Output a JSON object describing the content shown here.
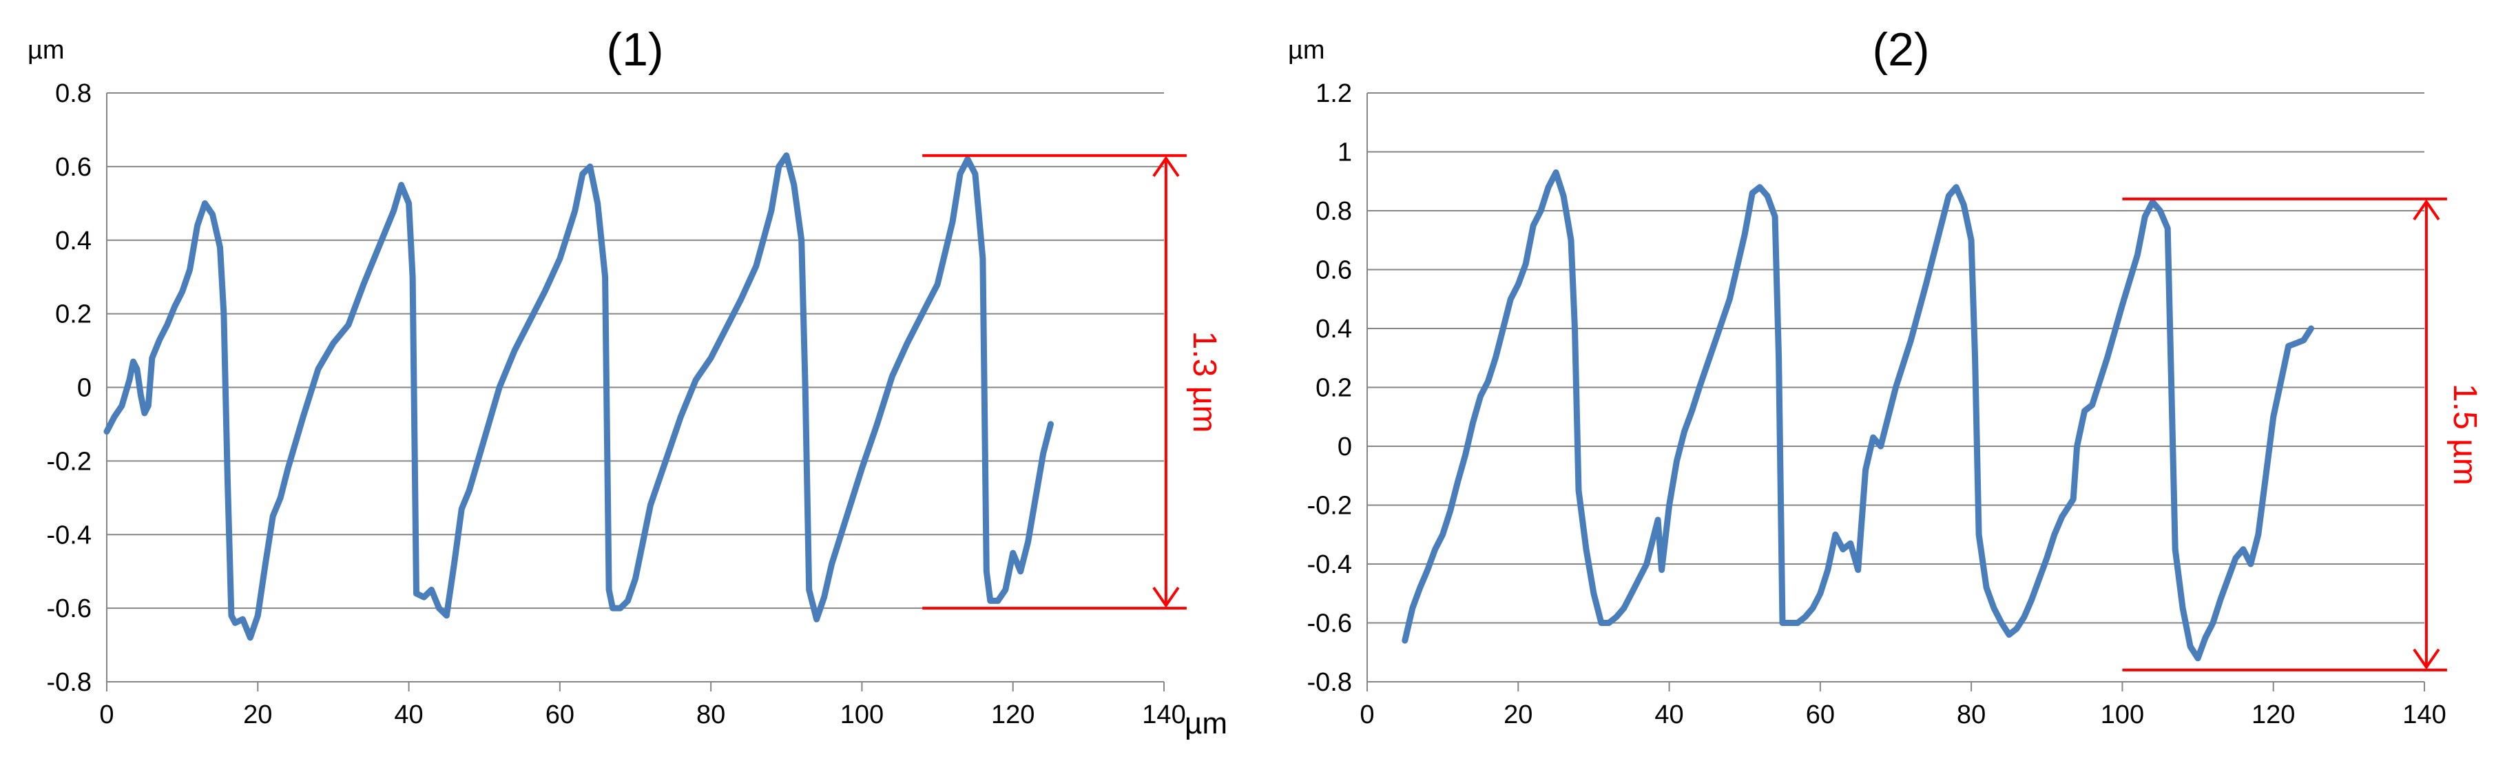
{
  "chart_data": [
    {
      "type": "line",
      "title": "(1)",
      "ylabel": "µm",
      "xlabel": "µm",
      "xlim": [
        0,
        140
      ],
      "ylim": [
        -0.8,
        0.8
      ],
      "xticks": [
        "0",
        "20",
        "40",
        "60",
        "80",
        "100",
        "120",
        "140"
      ],
      "yticks": [
        "-0.8",
        "-0.6",
        "-0.4",
        "-0.2",
        "0",
        "0.2",
        "0.4",
        "0.6",
        "0.8"
      ],
      "grid": "horizontal",
      "line_color": "#4a7ebb",
      "annotation_color": "#ff0000",
      "series": [
        {
          "x": [
            0,
            1,
            2,
            3,
            3.5,
            4,
            4.5,
            5,
            5.5,
            6,
            7,
            8,
            9,
            10,
            11,
            12,
            13,
            14,
            15,
            15.5,
            16,
            16.5,
            17,
            18,
            19,
            20,
            21,
            22,
            23,
            24,
            26,
            28,
            30,
            32,
            34,
            36,
            38,
            39,
            40,
            40.5,
            41,
            42,
            43,
            44,
            45,
            46,
            47,
            48,
            50,
            52,
            54,
            56,
            58,
            60,
            62,
            63,
            64,
            65,
            66,
            66.5,
            67,
            68,
            69,
            70,
            71,
            72,
            74,
            76,
            78,
            80,
            82,
            84,
            86,
            88,
            89,
            90,
            91,
            92,
            92.5,
            93,
            94,
            95,
            96,
            98,
            100,
            102,
            104,
            106,
            108,
            110,
            112,
            113,
            114,
            115,
            116,
            116.5,
            117,
            118,
            119,
            120,
            121,
            122,
            123,
            124,
            125
          ],
          "y": [
            -0.12,
            -0.08,
            -0.05,
            0.02,
            0.07,
            0.05,
            -0.02,
            -0.07,
            -0.05,
            0.08,
            0.13,
            0.17,
            0.22,
            0.26,
            0.32,
            0.44,
            0.5,
            0.47,
            0.38,
            0.2,
            -0.25,
            -0.62,
            -0.64,
            -0.63,
            -0.68,
            -0.62,
            -0.48,
            -0.35,
            -0.3,
            -0.22,
            -0.08,
            0.05,
            0.12,
            0.17,
            0.28,
            0.38,
            0.48,
            0.55,
            0.5,
            0.3,
            -0.56,
            -0.57,
            -0.55,
            -0.6,
            -0.62,
            -0.48,
            -0.33,
            -0.28,
            -0.14,
            0.0,
            0.1,
            0.18,
            0.26,
            0.35,
            0.48,
            0.58,
            0.6,
            0.5,
            0.3,
            -0.55,
            -0.6,
            -0.6,
            -0.58,
            -0.52,
            -0.42,
            -0.32,
            -0.2,
            -0.08,
            0.02,
            0.08,
            0.16,
            0.24,
            0.33,
            0.48,
            0.6,
            0.63,
            0.55,
            0.4,
            0.0,
            -0.55,
            -0.63,
            -0.57,
            -0.48,
            -0.35,
            -0.22,
            -0.1,
            0.03,
            0.12,
            0.2,
            0.28,
            0.45,
            0.58,
            0.62,
            0.58,
            0.35,
            -0.5,
            -0.58,
            -0.58,
            -0.55,
            -0.45,
            -0.5,
            -0.42,
            -0.3,
            -0.18,
            -0.1
          ]
        }
      ],
      "annotation": {
        "label": "1.3 µm",
        "y_top": 0.63,
        "y_bottom": -0.6,
        "x_start": 108,
        "x_end": 143
      }
    },
    {
      "type": "line",
      "title": "(2)",
      "ylabel": "µm",
      "xlabel": "",
      "xlim": [
        0,
        140
      ],
      "ylim": [
        -0.8,
        1.2
      ],
      "xticks": [
        "0",
        "20",
        "40",
        "60",
        "80",
        "100",
        "120",
        "140"
      ],
      "yticks": [
        "-0.8",
        "-0.6",
        "-0.4",
        "-0.2",
        "0",
        "0.2",
        "0.4",
        "0.6",
        "0.8",
        "1",
        "1.2"
      ],
      "grid": "horizontal",
      "line_color": "#4a7ebb",
      "annotation_color": "#ff0000",
      "series": [
        {
          "x": [
            5,
            6,
            7,
            8,
            9,
            10,
            11,
            12,
            13,
            14,
            15,
            16,
            17,
            18,
            19,
            20,
            21,
            22,
            23,
            24,
            25,
            26,
            27,
            27.5,
            28,
            29,
            30,
            31,
            32,
            33,
            34,
            35,
            36,
            37,
            38,
            38.5,
            39,
            40,
            41,
            42,
            43,
            44,
            46,
            48,
            50,
            51,
            52,
            53,
            54,
            54.5,
            55,
            56,
            57,
            58,
            59,
            60,
            61,
            62,
            63,
            64,
            65,
            66,
            67,
            68,
            70,
            72,
            74,
            76,
            77,
            78,
            79,
            80,
            80.5,
            81,
            82,
            83,
            84,
            85,
            86,
            87,
            88,
            89,
            90,
            91,
            92,
            93,
            93.5,
            94,
            95,
            96,
            98,
            100,
            102,
            103,
            104,
            105,
            106,
            106.5,
            107,
            108,
            109,
            110,
            111,
            112,
            113,
            114,
            115,
            116,
            117,
            118,
            119,
            120,
            121,
            122,
            123,
            124,
            125
          ],
          "y": [
            -0.66,
            -0.55,
            -0.48,
            -0.42,
            -0.35,
            -0.3,
            -0.22,
            -0.12,
            -0.03,
            0.08,
            0.17,
            0.22,
            0.3,
            0.4,
            0.5,
            0.55,
            0.62,
            0.75,
            0.8,
            0.88,
            0.93,
            0.85,
            0.7,
            0.4,
            -0.15,
            -0.35,
            -0.5,
            -0.6,
            -0.6,
            -0.58,
            -0.55,
            -0.5,
            -0.45,
            -0.4,
            -0.3,
            -0.25,
            -0.42,
            -0.2,
            -0.05,
            0.05,
            0.12,
            0.2,
            0.35,
            0.5,
            0.72,
            0.86,
            0.88,
            0.85,
            0.78,
            0.3,
            -0.6,
            -0.6,
            -0.6,
            -0.58,
            -0.55,
            -0.5,
            -0.42,
            -0.3,
            -0.35,
            -0.33,
            -0.42,
            -0.08,
            0.03,
            0.0,
            0.2,
            0.36,
            0.55,
            0.75,
            0.85,
            0.88,
            0.82,
            0.7,
            0.3,
            -0.3,
            -0.48,
            -0.55,
            -0.6,
            -0.64,
            -0.62,
            -0.58,
            -0.52,
            -0.45,
            -0.38,
            -0.3,
            -0.24,
            -0.2,
            -0.18,
            0.0,
            0.12,
            0.14,
            0.3,
            0.48,
            0.65,
            0.78,
            0.83,
            0.8,
            0.74,
            0.2,
            -0.35,
            -0.55,
            -0.68,
            -0.72,
            -0.65,
            -0.6,
            -0.52,
            -0.45,
            -0.38,
            -0.35,
            -0.4,
            -0.3,
            -0.1,
            0.1,
            0.22,
            0.34,
            0.35,
            0.36,
            0.4
          ]
        }
      ],
      "annotation": {
        "label": "1.5 µm",
        "y_top": 0.84,
        "y_bottom": -0.76,
        "x_start": 100,
        "x_end": 143
      }
    }
  ]
}
